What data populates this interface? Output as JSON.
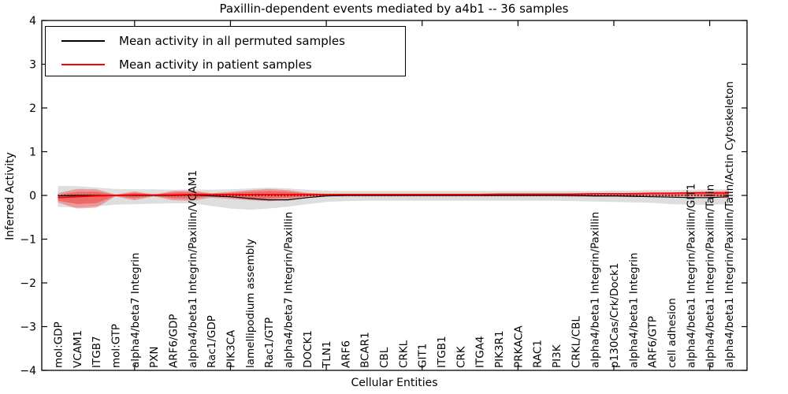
{
  "figure": {
    "background": "#ffffff"
  },
  "legend": {
    "position": "upper left",
    "entries": [
      {
        "label": "Mean activity in all permuted samples",
        "color": "#000000"
      },
      {
        "label": "Mean activity in patient samples",
        "color": "#ff0000"
      }
    ]
  },
  "chart_data": {
    "type": "line",
    "title": "Paxillin-dependent events mediated by a4b1 -- 36 samples",
    "xlabel": "Cellular Entities",
    "ylabel": "Inferred Activity",
    "ylim": [
      -4,
      4
    ],
    "yticks": [
      4,
      3,
      2,
      1,
      0,
      -1,
      -2,
      -3,
      -4
    ],
    "grid": false,
    "legend_position": "upper left",
    "zero_line": {
      "y": 0,
      "style": "dotted",
      "color": "#000000"
    },
    "categories": [
      "mol:GDP",
      "VCAM1",
      "ITGB7",
      "mol:GTP",
      "alpha4/beta7 Integrin",
      "PXN",
      "ARF6/GDP",
      "alpha4/beta1 Integrin/Paxillin/VCAM1",
      "Rac1/GDP",
      "PIK3CA",
      "lamellipodium assembly",
      "Rac1/GTP",
      "alpha4/beta7 Integrin/Paxillin",
      "DOCK1",
      "TLN1",
      "ARF6",
      "BCAR1",
      "CBL",
      "CRKL",
      "GIT1",
      "ITGB1",
      "CRK",
      "ITGA4",
      "PIK3R1",
      "PRKACA",
      "RAC1",
      "PI3K",
      "CRKL/CBL",
      "alpha4/beta1 Integrin/Paxillin",
      "p130Cas/Crk/Dock1",
      "alpha4/beta1 Integrin",
      "ARF6/GTP",
      "cell adhesion",
      "alpha4/beta1 Integrin/Paxillin/GIT1",
      "alpha4/beta1 Integrin/Paxillin/Talin",
      "alpha4/beta1 Integrin/Paxillin/Talin/Actin Cytoskeleton"
    ],
    "series": [
      {
        "name": "Mean activity in all permuted samples",
        "color": "#000000",
        "band_color": "#000000",
        "band_alpha": 0.13,
        "values": [
          -0.01,
          0.0,
          0.0,
          0.0,
          0.0,
          0.0,
          0.0,
          0.01,
          -0.01,
          -0.03,
          -0.07,
          -0.1,
          -0.1,
          -0.05,
          -0.01,
          0.0,
          0.0,
          0.0,
          0.0,
          0.0,
          0.0,
          0.0,
          0.0,
          0.0,
          0.0,
          0.0,
          0.0,
          0.0,
          -0.01,
          -0.01,
          -0.02,
          -0.03,
          -0.04,
          -0.05,
          -0.05,
          -0.03
        ],
        "band_low": [
          -0.26,
          -0.28,
          -0.25,
          -0.21,
          -0.2,
          -0.19,
          -0.18,
          -0.18,
          -0.24,
          -0.3,
          -0.33,
          -0.3,
          -0.26,
          -0.2,
          -0.15,
          -0.13,
          -0.12,
          -0.12,
          -0.12,
          -0.12,
          -0.12,
          -0.12,
          -0.12,
          -0.12,
          -0.12,
          -0.12,
          -0.12,
          -0.13,
          -0.14,
          -0.15,
          -0.16,
          -0.17,
          -0.2,
          -0.21,
          -0.21,
          -0.2
        ],
        "band_high": [
          0.22,
          0.21,
          0.18,
          0.15,
          0.14,
          0.14,
          0.13,
          0.14,
          0.13,
          0.14,
          0.16,
          0.18,
          0.16,
          0.13,
          0.11,
          0.1,
          0.1,
          0.1,
          0.1,
          0.1,
          0.1,
          0.1,
          0.1,
          0.1,
          0.1,
          0.1,
          0.1,
          0.1,
          0.1,
          0.11,
          0.11,
          0.12,
          0.12,
          0.13,
          0.14,
          0.14
        ]
      },
      {
        "name": "Mean activity in patient samples",
        "color": "#ff0000",
        "band_color": "#ff0000",
        "band_alpha": 0.3,
        "values": [
          -0.05,
          -0.03,
          -0.01,
          0.0,
          0.01,
          0.01,
          0.01,
          0.02,
          0.02,
          0.02,
          0.02,
          0.02,
          0.02,
          0.02,
          0.02,
          0.02,
          0.02,
          0.02,
          0.02,
          0.02,
          0.02,
          0.02,
          0.02,
          0.03,
          0.03,
          0.03,
          0.03,
          0.03,
          0.04,
          0.04,
          0.04,
          0.05,
          0.05,
          0.06,
          0.06,
          0.05
        ],
        "band_low": [
          -0.16,
          -0.3,
          -0.28,
          -0.02,
          -0.11,
          -0.02,
          -0.11,
          -0.12,
          -0.05,
          -0.08,
          -0.11,
          -0.13,
          -0.1,
          -0.05,
          -0.02,
          -0.02,
          -0.02,
          -0.02,
          -0.02,
          -0.02,
          -0.02,
          -0.02,
          -0.02,
          -0.02,
          -0.02,
          -0.02,
          -0.02,
          -0.03,
          -0.03,
          -0.03,
          -0.03,
          -0.03,
          -0.03,
          -0.03,
          -0.04,
          -0.06
        ],
        "band_high": [
          0.05,
          0.15,
          0.14,
          0.02,
          0.09,
          0.02,
          0.1,
          0.11,
          0.05,
          0.08,
          0.12,
          0.15,
          0.12,
          0.06,
          0.04,
          0.04,
          0.04,
          0.04,
          0.04,
          0.04,
          0.04,
          0.04,
          0.04,
          0.04,
          0.04,
          0.04,
          0.04,
          0.05,
          0.05,
          0.05,
          0.06,
          0.06,
          0.07,
          0.08,
          0.09,
          0.1
        ]
      }
    ]
  }
}
